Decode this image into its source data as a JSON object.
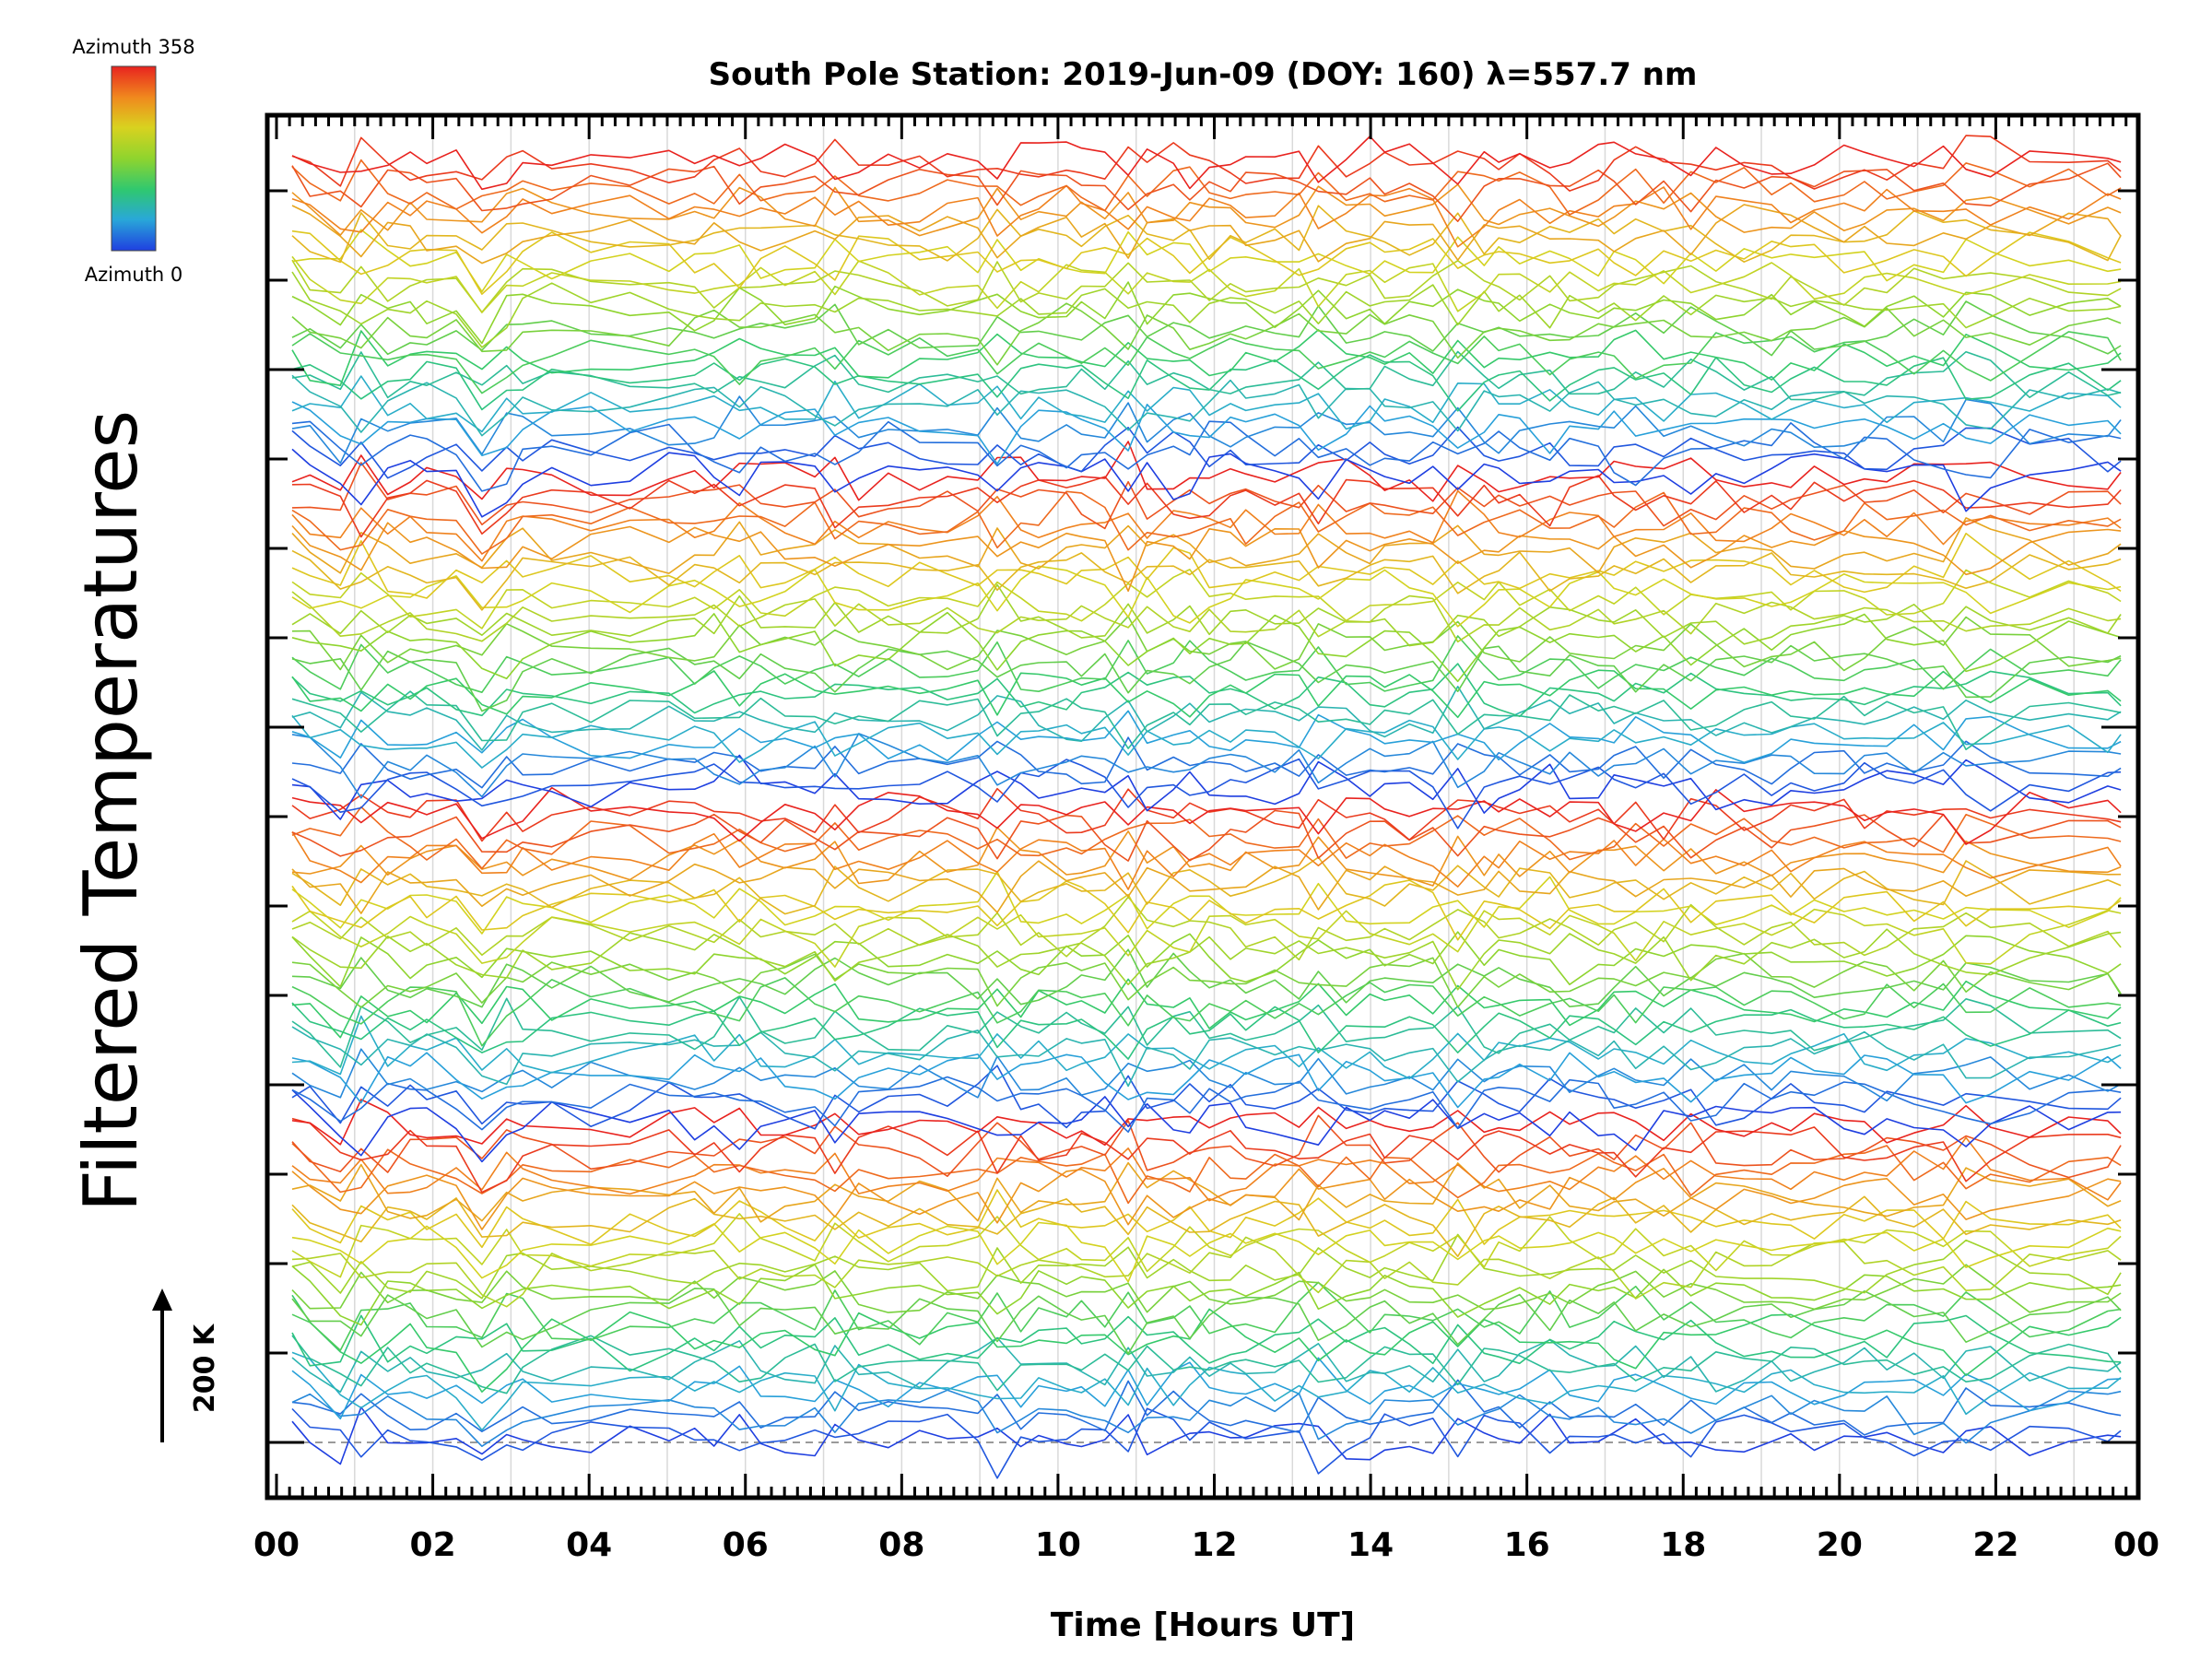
{
  "chart_data": {
    "type": "line",
    "title": "South Pole Station: 2019-Jun-09 (DOY: 160) λ=557.7 nm",
    "xlabel": "Time [Hours UT]",
    "ylabel": "Filtered Temperatures",
    "xlim": [
      0,
      24
    ],
    "x_tick_labels": [
      "00",
      "02",
      "04",
      "06",
      "08",
      "10",
      "12",
      "14",
      "16",
      "18",
      "20",
      "22",
      "00"
    ],
    "scale_bar": {
      "label": "200 K",
      "value_K": 200
    },
    "colorbar": {
      "top_label": "Azimuth 358",
      "bottom_label": "Azimuth 0",
      "colors": [
        "#e8231f",
        "#f08a1e",
        "#d9d21f",
        "#8fd42e",
        "#2fc870",
        "#29a8d8",
        "#1f3fe0"
      ],
      "placement": "top-left"
    },
    "series_count": 108,
    "azimuth_range": [
      0,
      358
    ],
    "baseline_style": "dashed-gray",
    "grid": "vertical-gray"
  }
}
